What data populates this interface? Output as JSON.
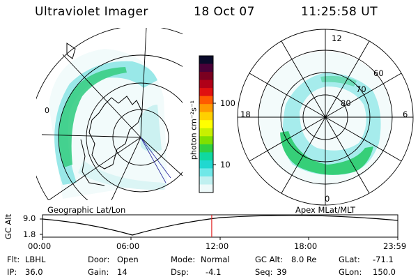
{
  "header": {
    "instrument": "Ultraviolet Imager",
    "date": "18 Oct 07",
    "time": "11:25:58 UT"
  },
  "geo_panel": {
    "label": "Geographic Lat/Lon",
    "map_mark": "0"
  },
  "mag_panel": {
    "label": "Apex MLat/MLT",
    "mlt_labels": [
      "12",
      "18",
      "6",
      "0"
    ],
    "mlat_labels": [
      "60",
      "70",
      "80"
    ]
  },
  "colorbar": {
    "unit_label": "photon cm⁻²s⁻¹",
    "ticks": [
      "100",
      "10"
    ],
    "colors": [
      "#0a0a2a",
      "#4a0038",
      "#7a0020",
      "#b00018",
      "#e01010",
      "#ff5a00",
      "#ff9a00",
      "#ffd000",
      "#ffff00",
      "#c8f000",
      "#80e000",
      "#30d040",
      "#10d8a0",
      "#20d8d0",
      "#70e8e8",
      "#c0f0f0",
      "#eefafa"
    ]
  },
  "altitude_plot": {
    "ylabel": "GC Alt",
    "yticks": [
      "9.0",
      "1.8"
    ],
    "xticks": [
      "00:00",
      "06:00",
      "12:00",
      "18:00",
      "23:59"
    ],
    "current_time_fraction": 0.4763,
    "marker_color": "#e02020"
  },
  "status": {
    "filter_label": "Flt:",
    "filter_value": "LBHL",
    "ip_label": "IP:",
    "ip_value": "36.0",
    "door_label": "Door:",
    "door_value": "Open",
    "gain_label": "Gain:",
    "gain_value": "14",
    "mode_label": "Mode:",
    "mode_value": "Normal",
    "dsp_label": "Dsp:",
    "dsp_value": "-4.1",
    "gcalt_label": "GC Alt:",
    "gcalt_value": "8.0 Re",
    "seq_label": "Seq:",
    "seq_value": "39",
    "glat_label": "GLat:",
    "glat_value": "-71.1",
    "glon_label": "GLon:",
    "glon_value": "150.0"
  }
}
